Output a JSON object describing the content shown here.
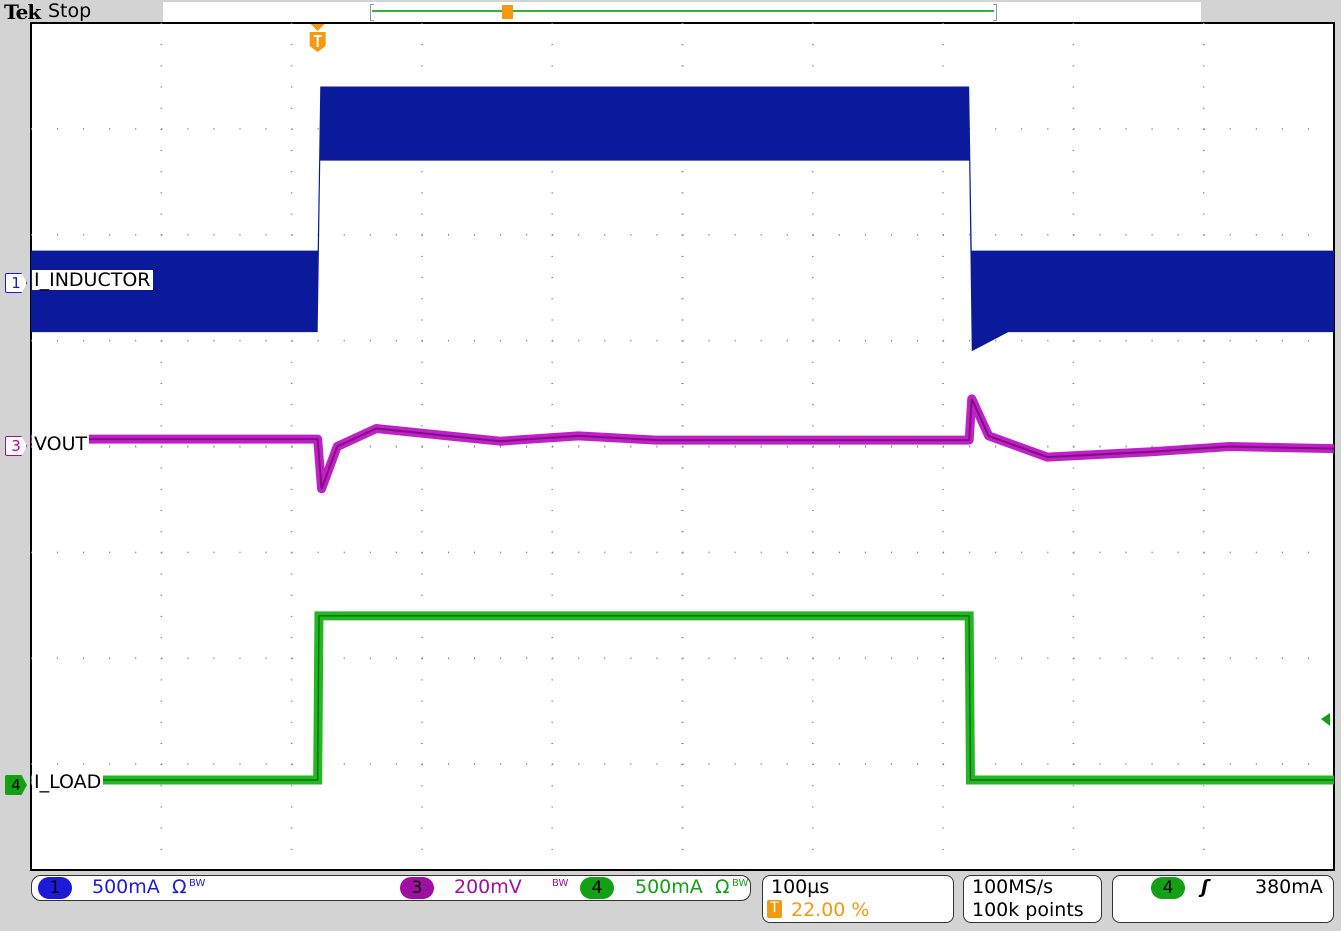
{
  "header": {
    "brand": "Tek",
    "acq_state": "Stop"
  },
  "channels": [
    {
      "num": "1",
      "label": "I_INDUCTOR",
      "scale": "500mA",
      "flags": "Ω",
      "bw": "BW",
      "color": "#1b1bd8",
      "trace": "#0a1a9a"
    },
    {
      "num": "3",
      "label": "VOUT",
      "scale": "200mV",
      "flags": "",
      "bw": "BW",
      "color": "#a010a0",
      "trace": "#c020c8"
    },
    {
      "num": "4",
      "label": "I_LOAD",
      "scale": "500mA",
      "flags": "Ω",
      "bw": "BW",
      "color": "#14a014",
      "trace": "#22b822"
    }
  ],
  "timebase": {
    "scale": "100µs",
    "trigger_pos": "22.00 %",
    "trigger_icon": "T"
  },
  "acquisition": {
    "rate": "100MS/s",
    "length": "100k points"
  },
  "trigger": {
    "source": "4",
    "slope": "rising-edge-icon",
    "level": "380mA"
  },
  "colors": {
    "trigger": "#f39a10",
    "grid": "#777777"
  },
  "chart_data": {
    "type": "line",
    "grid": true,
    "x_unit": "µs (relative to trigger)",
    "xlim": [
      -220,
      780
    ],
    "ylim_divisions": [
      -4,
      4
    ],
    "series": [
      {
        "name": "I_INDUCTOR",
        "envelope_div": [
          {
            "t": -220,
            "lo": 1.08,
            "hi": 1.85
          },
          {
            "t": 0,
            "lo": 1.08,
            "hi": 1.85
          },
          {
            "t": 2,
            "lo": 2.7,
            "hi": 3.4
          },
          {
            "t": 100,
            "lo": 2.7,
            "hi": 3.4
          },
          {
            "t": 500,
            "lo": 2.7,
            "hi": 3.4
          },
          {
            "t": 502,
            "lo": 0.9,
            "hi": 1.85
          },
          {
            "t": 530,
            "lo": 1.08,
            "hi": 1.85
          },
          {
            "t": 780,
            "lo": 1.08,
            "hi": 1.85
          }
        ]
      },
      {
        "name": "VOUT",
        "points_div": [
          {
            "t": -220,
            "v": 0.07
          },
          {
            "t": 0,
            "v": 0.07
          },
          {
            "t": 3,
            "v": -0.4
          },
          {
            "t": 15,
            "v": 0.0
          },
          {
            "t": 45,
            "v": 0.17
          },
          {
            "t": 100,
            "v": 0.1
          },
          {
            "t": 140,
            "v": 0.05
          },
          {
            "t": 200,
            "v": 0.1
          },
          {
            "t": 260,
            "v": 0.06
          },
          {
            "t": 500,
            "v": 0.06
          },
          {
            "t": 502,
            "v": 0.45
          },
          {
            "t": 515,
            "v": 0.1
          },
          {
            "t": 560,
            "v": -0.1
          },
          {
            "t": 640,
            "v": -0.05
          },
          {
            "t": 700,
            "v": 0.0
          },
          {
            "t": 780,
            "v": -0.02
          }
        ]
      },
      {
        "name": "I_LOAD",
        "points_div": [
          {
            "t": -220,
            "v": -3.15
          },
          {
            "t": 0,
            "v": -3.15
          },
          {
            "t": 1,
            "v": -1.6
          },
          {
            "t": 500,
            "v": -1.6
          },
          {
            "t": 501,
            "v": -3.15
          },
          {
            "t": 780,
            "v": -3.15
          }
        ]
      }
    ]
  }
}
